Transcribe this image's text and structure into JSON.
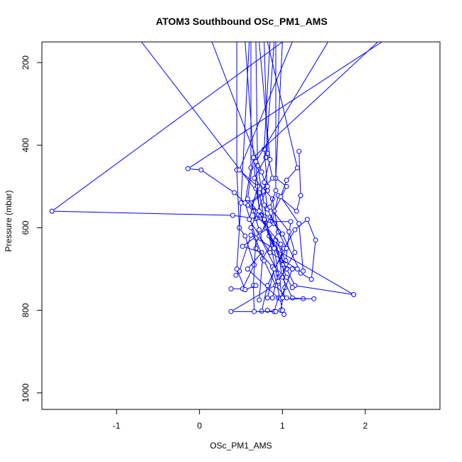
{
  "chart_data": {
    "type": "line",
    "title": "ATOM3 Southbound OSc_PM1_AMS",
    "xlabel": "OSc_PM1_AMS",
    "ylabel": "Pressure (mbar)",
    "xlim": [
      -1.9,
      2.9
    ],
    "ylim": [
      1040,
      150
    ],
    "y_reversed": true,
    "grid": false,
    "x_ticks": [
      -1,
      0,
      1,
      2
    ],
    "x_tick_labels": [
      "-1",
      "0",
      "1",
      "2"
    ],
    "y_ticks": [
      200,
      400,
      600,
      800,
      1000
    ],
    "y_tick_labels": [
      "200",
      "400",
      "600",
      "800",
      "1000"
    ],
    "line_color": "#0000ff",
    "marker": "open-circle",
    "series": [
      {
        "points": [
          {
            "x": 1.2,
            "y": 415
          },
          {
            "x": 1.22,
            "y": 522
          },
          {
            "x": 1.17,
            "y": 560
          },
          {
            "x": 0.95,
            "y": 522
          },
          {
            "x": 0.88,
            "y": 585
          },
          {
            "x": 1.1,
            "y": 585
          },
          {
            "x": 1.04,
            "y": 680
          },
          {
            "x": 0.92,
            "y": 630
          },
          {
            "x": 1.0,
            "y": 720
          },
          {
            "x": 1.12,
            "y": 770
          },
          {
            "x": 1.25,
            "y": 772
          }
        ]
      },
      {
        "points": [
          {
            "x": 2.2,
            "y": 150
          },
          {
            "x": -0.14,
            "y": 457
          },
          {
            "x": 0.02,
            "y": 460
          },
          {
            "x": 0.42,
            "y": 515
          },
          {
            "x": 0.65,
            "y": 560
          },
          {
            "x": 0.98,
            "y": 640
          },
          {
            "x": 1.03,
            "y": 745
          },
          {
            "x": 0.98,
            "y": 800
          },
          {
            "x": 1.02,
            "y": 810
          }
        ]
      },
      {
        "points": [
          {
            "x": 1.0,
            "y": 150
          },
          {
            "x": -1.78,
            "y": 560
          },
          {
            "x": 0.4,
            "y": 570
          },
          {
            "x": 0.68,
            "y": 578
          },
          {
            "x": 0.9,
            "y": 590
          },
          {
            "x": 0.52,
            "y": 645
          },
          {
            "x": 0.75,
            "y": 660
          },
          {
            "x": 0.58,
            "y": 700
          },
          {
            "x": 0.95,
            "y": 770
          },
          {
            "x": 0.9,
            "y": 803
          },
          {
            "x": 0.82,
            "y": 800
          }
        ]
      },
      {
        "points": [
          {
            "x": -0.7,
            "y": 150
          },
          {
            "x": 0.72,
            "y": 520
          },
          {
            "x": 0.58,
            "y": 545
          },
          {
            "x": 0.85,
            "y": 575
          },
          {
            "x": 1.0,
            "y": 615
          },
          {
            "x": 1.22,
            "y": 710
          },
          {
            "x": 1.35,
            "y": 725
          },
          {
            "x": 1.4,
            "y": 630
          },
          {
            "x": 1.3,
            "y": 580
          },
          {
            "x": 1.15,
            "y": 605
          },
          {
            "x": 1.02,
            "y": 650
          },
          {
            "x": 0.82,
            "y": 740
          },
          {
            "x": 0.75,
            "y": 802
          }
        ]
      },
      {
        "points": [
          {
            "x": 0.45,
            "y": 150
          },
          {
            "x": 0.45,
            "y": 460
          },
          {
            "x": 0.48,
            "y": 600
          },
          {
            "x": 0.55,
            "y": 620
          },
          {
            "x": 0.66,
            "y": 690
          },
          {
            "x": 0.52,
            "y": 748
          },
          {
            "x": 0.38,
            "y": 748
          }
        ]
      },
      {
        "points": [
          {
            "x": 0.15,
            "y": 150
          },
          {
            "x": 0.75,
            "y": 465
          },
          {
            "x": 0.82,
            "y": 510
          },
          {
            "x": 0.62,
            "y": 540
          },
          {
            "x": 0.72,
            "y": 605
          },
          {
            "x": 0.68,
            "y": 650
          },
          {
            "x": 0.88,
            "y": 695
          },
          {
            "x": 0.97,
            "y": 770
          },
          {
            "x": 1.0,
            "y": 800
          }
        ]
      },
      {
        "points": [
          {
            "x": 0.55,
            "y": 150
          },
          {
            "x": 0.68,
            "y": 505
          },
          {
            "x": 0.74,
            "y": 570
          },
          {
            "x": 1.05,
            "y": 700
          },
          {
            "x": 1.15,
            "y": 740
          },
          {
            "x": 1.86,
            "y": 762
          },
          {
            "x": 0.62,
            "y": 618
          },
          {
            "x": 0.48,
            "y": 705
          },
          {
            "x": 0.44,
            "y": 715
          }
        ]
      },
      {
        "points": [
          {
            "x": 0.68,
            "y": 150
          },
          {
            "x": 0.7,
            "y": 450
          },
          {
            "x": 0.78,
            "y": 545
          },
          {
            "x": 0.84,
            "y": 620
          },
          {
            "x": 0.95,
            "y": 735
          },
          {
            "x": 0.38,
            "y": 803
          },
          {
            "x": 0.92,
            "y": 803
          }
        ]
      },
      {
        "points": [
          {
            "x": 0.78,
            "y": 150
          },
          {
            "x": 0.82,
            "y": 420
          },
          {
            "x": 0.88,
            "y": 480
          },
          {
            "x": 0.72,
            "y": 515
          },
          {
            "x": 0.8,
            "y": 600
          },
          {
            "x": 1.0,
            "y": 690
          },
          {
            "x": 1.12,
            "y": 700
          },
          {
            "x": 0.98,
            "y": 772
          },
          {
            "x": 1.38,
            "y": 772
          }
        ]
      },
      {
        "points": [
          {
            "x": 0.9,
            "y": 150
          },
          {
            "x": 0.8,
            "y": 430
          },
          {
            "x": 0.66,
            "y": 480
          },
          {
            "x": 0.88,
            "y": 530
          },
          {
            "x": 0.95,
            "y": 610
          },
          {
            "x": 0.76,
            "y": 675
          },
          {
            "x": 0.72,
            "y": 775
          }
        ]
      },
      {
        "points": [
          {
            "x": 0.62,
            "y": 150
          },
          {
            "x": 0.62,
            "y": 455
          },
          {
            "x": 0.55,
            "y": 540
          },
          {
            "x": 0.68,
            "y": 625
          },
          {
            "x": 0.65,
            "y": 740
          },
          {
            "x": 0.66,
            "y": 803
          }
        ]
      },
      {
        "points": [
          {
            "x": 0.72,
            "y": 150
          },
          {
            "x": 0.85,
            "y": 435
          },
          {
            "x": 0.78,
            "y": 490
          },
          {
            "x": 0.82,
            "y": 555
          },
          {
            "x": 1.05,
            "y": 650
          },
          {
            "x": 0.9,
            "y": 700
          },
          {
            "x": 0.82,
            "y": 770
          }
        ]
      },
      {
        "points": [
          {
            "x": 0.85,
            "y": 150
          },
          {
            "x": 0.78,
            "y": 410
          },
          {
            "x": 0.82,
            "y": 500
          },
          {
            "x": 0.62,
            "y": 600
          },
          {
            "x": 0.78,
            "y": 680
          },
          {
            "x": 0.92,
            "y": 740
          },
          {
            "x": 1.05,
            "y": 770
          }
        ]
      },
      {
        "points": [
          {
            "x": 1.0,
            "y": 150
          },
          {
            "x": 0.92,
            "y": 480
          },
          {
            "x": 1.05,
            "y": 500
          },
          {
            "x": 0.9,
            "y": 560
          },
          {
            "x": 0.72,
            "y": 620
          },
          {
            "x": 0.95,
            "y": 710
          },
          {
            "x": 0.88,
            "y": 770
          }
        ]
      },
      {
        "points": [
          {
            "x": 1.12,
            "y": 150
          },
          {
            "x": 0.48,
            "y": 460
          },
          {
            "x": 0.7,
            "y": 500
          },
          {
            "x": 0.6,
            "y": 580
          },
          {
            "x": 0.85,
            "y": 660
          },
          {
            "x": 1.18,
            "y": 700
          }
        ]
      },
      {
        "points": [
          {
            "x": 2.15,
            "y": 150
          },
          {
            "x": 0.65,
            "y": 430
          },
          {
            "x": 0.58,
            "y": 530
          },
          {
            "x": 0.78,
            "y": 580
          },
          {
            "x": 1.05,
            "y": 720
          },
          {
            "x": 1.12,
            "y": 745
          }
        ]
      },
      {
        "points": [
          {
            "x": 1.55,
            "y": 150
          },
          {
            "x": 0.68,
            "y": 440
          },
          {
            "x": 0.72,
            "y": 560
          },
          {
            "x": 0.9,
            "y": 650
          },
          {
            "x": 1.0,
            "y": 770
          }
        ]
      },
      {
        "points": [
          {
            "x": 0.82,
            "y": 150
          },
          {
            "x": 1.18,
            "y": 455
          },
          {
            "x": 1.05,
            "y": 485
          },
          {
            "x": 0.98,
            "y": 525
          },
          {
            "x": 1.2,
            "y": 590
          },
          {
            "x": 1.25,
            "y": 705
          }
        ]
      },
      {
        "points": [
          {
            "x": 0.92,
            "y": 150
          },
          {
            "x": 0.92,
            "y": 510
          },
          {
            "x": 0.85,
            "y": 550
          },
          {
            "x": 1.08,
            "y": 610
          },
          {
            "x": 1.15,
            "y": 660
          },
          {
            "x": 0.95,
            "y": 730
          }
        ]
      },
      {
        "points": [
          {
            "x": 0.6,
            "y": 150
          },
          {
            "x": 0.5,
            "y": 540
          },
          {
            "x": 0.45,
            "y": 700
          },
          {
            "x": 0.55,
            "y": 750
          },
          {
            "x": 0.68,
            "y": 740
          }
        ]
      }
    ]
  }
}
